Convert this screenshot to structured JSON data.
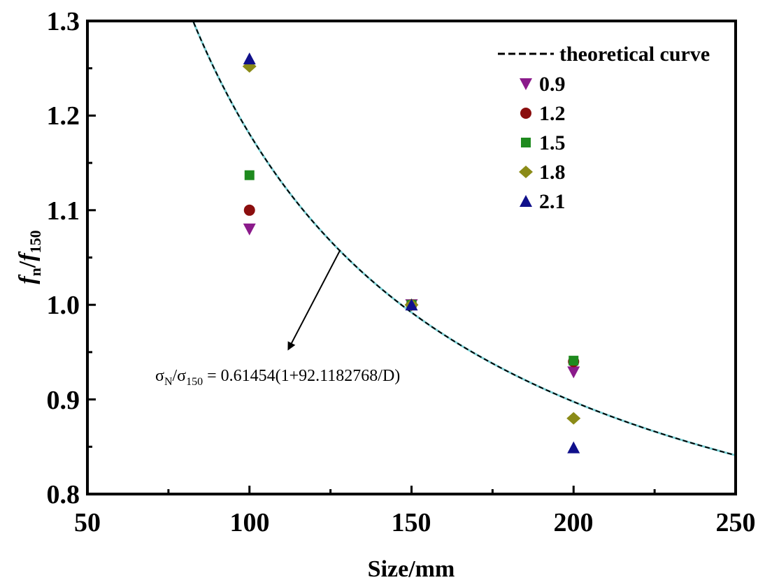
{
  "chart_data": {
    "type": "scatter",
    "xlabel": "Size/mm",
    "ylabel": {
      "f1": "f",
      "s1": "n",
      "slash": "/",
      "f2": "f",
      "s2": "150"
    },
    "xlim": [
      50,
      250
    ],
    "ylim": [
      0.8,
      1.3
    ],
    "xticks": [
      50,
      100,
      150,
      200,
      250
    ],
    "yticks": [
      0.8,
      0.9,
      1.0,
      1.1,
      1.2,
      1.3
    ],
    "xtick_labels": [
      "50",
      "100",
      "150",
      "200",
      "250"
    ],
    "ytick_labels": [
      "0.8",
      "0.9",
      "1.0",
      "1.1",
      "1.2",
      "1.3"
    ],
    "legend_position": "top-right",
    "curve": {
      "name": "theoretical curve",
      "a": 0.61454,
      "b": 92.1182768,
      "x_range": [
        50,
        250
      ],
      "color": "#000000",
      "overlay_color": "#7fd4d9"
    },
    "annotation": {
      "sigma": "σ",
      "sub_n": "N",
      "sub_150": "150",
      "formula_rest": " = 0.61454(1+92.1182768/D)",
      "slash": "/",
      "arrow_from_x": 128,
      "arrow_from_y": 1.058,
      "arrow_to_x": 112,
      "arrow_to_y": 0.953
    },
    "series": [
      {
        "name": "0.9",
        "marker": "triangle-down",
        "color": "#8b1a8b",
        "x": [
          100,
          150,
          200
        ],
        "y": [
          1.08,
          1.0,
          0.929
        ]
      },
      {
        "name": "1.2",
        "marker": "circle",
        "color": "#8b0e0e",
        "x": [
          100,
          150,
          200
        ],
        "y": [
          1.1,
          1.0,
          0.94
        ]
      },
      {
        "name": "1.5",
        "marker": "square",
        "color": "#1e8a1e",
        "x": [
          100,
          150,
          200
        ],
        "y": [
          1.137,
          1.0,
          0.941
        ]
      },
      {
        "name": "1.8",
        "marker": "diamond",
        "color": "#8b8b17",
        "x": [
          100,
          150,
          200
        ],
        "y": [
          1.252,
          1.0,
          0.88
        ]
      },
      {
        "name": "2.1",
        "marker": "triangle-up",
        "color": "#10108b",
        "x": [
          100,
          150,
          200
        ],
        "y": [
          1.26,
          1.0,
          0.849
        ]
      }
    ]
  }
}
